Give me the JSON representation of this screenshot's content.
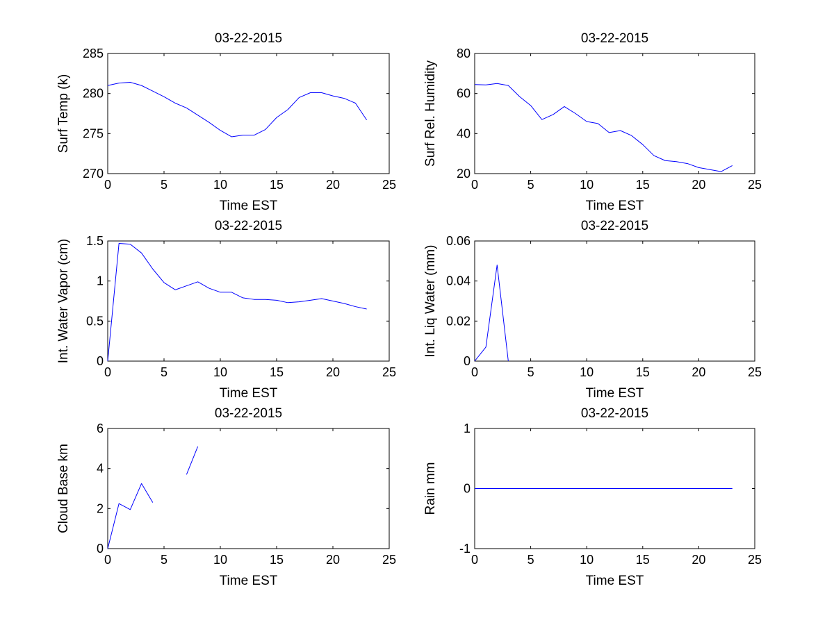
{
  "line_color": "#0000ff",
  "chart_data": [
    {
      "type": "line",
      "title": "03-22-2015",
      "xlabel": "Time EST",
      "ylabel": "Surf Temp (k)",
      "xlim": [
        0,
        25
      ],
      "ylim": [
        270,
        285
      ],
      "xticks": [
        0,
        5,
        10,
        15,
        20,
        25
      ],
      "yticks": [
        270,
        275,
        280,
        285
      ],
      "grid": false,
      "series": [
        {
          "x": [
            0,
            1,
            2,
            3,
            4,
            5,
            6,
            7,
            8,
            9,
            10,
            11,
            12,
            13,
            14,
            15,
            16,
            17,
            18,
            19,
            20,
            21,
            22,
            23
          ],
          "values": [
            281.0,
            281.3,
            281.4,
            281.0,
            280.3,
            279.6,
            278.8,
            278.2,
            277.3,
            276.4,
            275.4,
            274.6,
            274.8,
            274.8,
            275.5,
            277.0,
            278.0,
            279.5,
            280.1,
            280.1,
            279.7,
            279.4,
            278.8,
            276.7
          ]
        }
      ]
    },
    {
      "type": "line",
      "title": "03-22-2015",
      "xlabel": "Time EST",
      "ylabel": "Surf Rel. Humidity",
      "xlim": [
        0,
        25
      ],
      "ylim": [
        20,
        80
      ],
      "xticks": [
        0,
        5,
        10,
        15,
        20,
        25
      ],
      "yticks": [
        20,
        40,
        60,
        80
      ],
      "grid": false,
      "series": [
        {
          "x": [
            0,
            1,
            2,
            3,
            4,
            5,
            6,
            7,
            8,
            9,
            10,
            11,
            12,
            13,
            14,
            15,
            16,
            17,
            18,
            19,
            20,
            21,
            22,
            23
          ],
          "values": [
            64.5,
            64.3,
            65.0,
            64.0,
            58.5,
            54.0,
            47.0,
            49.5,
            53.5,
            50.0,
            46.0,
            45.0,
            40.5,
            41.5,
            39.0,
            34.5,
            29.0,
            26.5,
            26.0,
            25.0,
            23.0,
            22.0,
            21.0,
            24.0
          ]
        }
      ]
    },
    {
      "type": "line",
      "title": "03-22-2015",
      "xlabel": "Time EST",
      "ylabel": "Int. Water Vapor (cm)",
      "xlim": [
        0,
        25
      ],
      "ylim": [
        0,
        1.5
      ],
      "xticks": [
        0,
        5,
        10,
        15,
        20,
        25
      ],
      "yticks": [
        0,
        0.5,
        1,
        1.5
      ],
      "grid": false,
      "series": [
        {
          "x": [
            0,
            1,
            2,
            3,
            4,
            5,
            6,
            7,
            8,
            9,
            10,
            11,
            12,
            13,
            14,
            15,
            16,
            17,
            18,
            19,
            20,
            21,
            22,
            23
          ],
          "values": [
            0.0,
            1.47,
            1.46,
            1.35,
            1.15,
            0.98,
            0.89,
            0.94,
            0.99,
            0.91,
            0.86,
            0.86,
            0.79,
            0.77,
            0.77,
            0.76,
            0.73,
            0.74,
            0.76,
            0.78,
            0.75,
            0.72,
            0.68,
            0.65
          ]
        }
      ]
    },
    {
      "type": "line",
      "title": "03-22-2015",
      "xlabel": "Time EST",
      "ylabel": "Int. Liq Water (mm)",
      "xlim": [
        0,
        25
      ],
      "ylim": [
        0,
        0.06
      ],
      "xticks": [
        0,
        5,
        10,
        15,
        20,
        25
      ],
      "yticks": [
        0,
        0.02,
        0.04,
        0.06
      ],
      "grid": false,
      "series": [
        {
          "x": [
            0,
            1,
            2,
            3
          ],
          "values": [
            0.0,
            0.007,
            0.048,
            0.0
          ]
        }
      ]
    },
    {
      "type": "line",
      "title": "03-22-2015",
      "xlabel": "Time EST",
      "ylabel": "Cloud Base km",
      "xlim": [
        0,
        25
      ],
      "ylim": [
        0,
        6
      ],
      "xticks": [
        0,
        5,
        10,
        15,
        20,
        25
      ],
      "yticks": [
        0,
        2,
        4,
        6
      ],
      "grid": false,
      "series": [
        {
          "x": [
            0,
            1,
            2,
            3,
            4
          ],
          "values": [
            0.0,
            2.25,
            1.95,
            3.25,
            2.3
          ]
        },
        {
          "x": [
            7,
            8
          ],
          "values": [
            3.7,
            5.1
          ]
        }
      ]
    },
    {
      "type": "line",
      "title": "03-22-2015",
      "xlabel": "Time EST",
      "ylabel": "Rain mm",
      "xlim": [
        0,
        25
      ],
      "ylim": [
        -1,
        1
      ],
      "xticks": [
        0,
        5,
        10,
        15,
        20,
        25
      ],
      "yticks": [
        -1,
        0,
        1
      ],
      "grid": false,
      "series": [
        {
          "x": [
            0,
            1,
            2,
            3,
            4,
            5,
            6,
            7,
            8,
            9,
            10,
            11,
            12,
            13,
            14,
            15,
            16,
            17,
            18,
            19,
            20,
            21,
            22,
            23
          ],
          "values": [
            0,
            0,
            0,
            0,
            0,
            0,
            0,
            0,
            0,
            0,
            0,
            0,
            0,
            0,
            0,
            0,
            0,
            0,
            0,
            0,
            0,
            0,
            0,
            0
          ]
        }
      ]
    }
  ]
}
